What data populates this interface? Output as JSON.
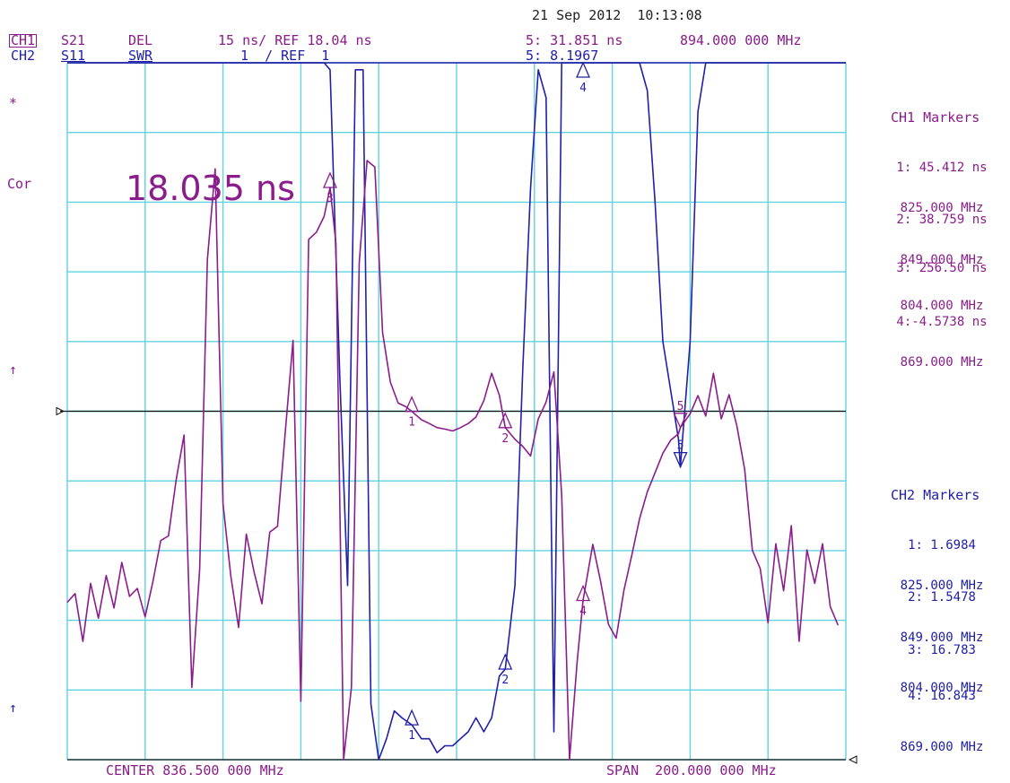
{
  "header": {
    "datetime": "21 Sep 2012  10:13:08",
    "ch1": {
      "label": "CH1",
      "param": "S21",
      "format": "DEL",
      "scale": "15 ns/ REF 18.04 ns",
      "marker_readout": "5: 31.851 ns",
      "marker_freq": "894.000 000 MHz"
    },
    "ch2": {
      "label": "CH2",
      "param": "S11",
      "format": "SWR",
      "scale": "1  / REF  1",
      "marker_readout": "5: 8.1967"
    }
  },
  "left_annotations": {
    "star": "*",
    "cor": "Cor",
    "arrow_top": "↑",
    "arrow_bottom": "↑"
  },
  "big_readout": "18.035 ns",
  "footer": {
    "center": "CENTER 836.500 000 MHz",
    "span": "SPAN  200.000 000 MHz"
  },
  "ch1_markers": {
    "title": "CH1 Markers",
    "items": [
      {
        "value": "1: 45.412 ns",
        "freq": "825.000 MHz"
      },
      {
        "value": "2: 38.759 ns",
        "freq": "849.000 MHz"
      },
      {
        "value": "3: 256.50 ns",
        "freq": "804.000 MHz"
      },
      {
        "value": "4:-4.5738 ns",
        "freq": "869.000 MHz"
      }
    ]
  },
  "ch2_markers": {
    "title": "CH2 Markers",
    "items": [
      {
        "value": "1: 1.6984",
        "freq": "825.000 MHz"
      },
      {
        "value": "2: 1.5478",
        "freq": "849.000 MHz"
      },
      {
        "value": "3: 16.783",
        "freq": "804.000 MHz"
      },
      {
        "value": "4: 16.843",
        "freq": "869.000 MHz"
      }
    ]
  },
  "chart_data": {
    "type": "line",
    "title": "",
    "xlim": [
      736.5,
      936.5
    ],
    "x_divisions": 10,
    "y_divisions": 10,
    "grid": true,
    "colors": {
      "ch1": "#8b1c8b",
      "ch2": "#2020a8",
      "grid": "#5fd3e0"
    },
    "series": [
      {
        "name": "CH1 S21 DEL",
        "color": "#8b1c8b",
        "x_freq_mhz": [
          736.5,
          738.5,
          740.5,
          742.5,
          744.5,
          746.5,
          748.5,
          750.5,
          752.5,
          754.5,
          756.5,
          758.5,
          760.5,
          762.5,
          764.5,
          766.5,
          768.5,
          770.5,
          772.5,
          774.5,
          776.5,
          778.5,
          780.5,
          782.5,
          784.5,
          786.5,
          788.5,
          790.5,
          792.5,
          794.5,
          796.5,
          798.5,
          800.5,
          802.5,
          804.0,
          805.5,
          807.5,
          809.5,
          811.5,
          813.5,
          815.5,
          817.5,
          819.5,
          821.5,
          823.5,
          825.0,
          827.5,
          829.5,
          831.5,
          833.5,
          835.5,
          837.5,
          839.5,
          841.5,
          843.5,
          845.5,
          847.5,
          849.0,
          851.5,
          853.5,
          855.5,
          857.5,
          859.5,
          861.5,
          863.5,
          865.5,
          867.5,
          869.0,
          871.5,
          873.5,
          875.5,
          877.5,
          879.5,
          881.5,
          883.5,
          885.5,
          887.5,
          889.5,
          891.5,
          893.5,
          894.0,
          896.5,
          898.5,
          900.5,
          902.5,
          904.5,
          906.5,
          908.5,
          910.5,
          912.5,
          914.5,
          916.5,
          918.5,
          920.5,
          922.5,
          924.5,
          926.5,
          928.5,
          930.5,
          932.5,
          934.5,
          936.5
        ],
        "y_ns": [
          -23.1,
          -21.2,
          -31.5,
          -19.0,
          -26.5,
          -17.3,
          -24.3,
          -14.5,
          -21.8,
          -20.1,
          -26.2,
          -18.6,
          -9.8,
          -8.8,
          3.4,
          12.9,
          -41.4,
          -15.9,
          50.7,
          70.2,
          -1.8,
          -17.4,
          -28.5,
          -8.4,
          -16.6,
          -23.4,
          -8.0,
          -6.7,
          13.5,
          33.3,
          -44.4,
          55.0,
          56.6,
          60.0,
          66.2,
          54.2,
          -60.0,
          -41.3,
          50.0,
          72.0,
          70.6,
          35.0,
          24.3,
          19.8,
          19.0,
          18.0,
          16.2,
          15.4,
          14.5,
          14.2,
          13.8,
          14.5,
          15.4,
          16.8,
          20.3,
          26.2,
          21.5,
          14.5,
          12.0,
          10.5,
          8.4,
          16.4,
          20.0,
          26.5,
          0.0,
          -60.0,
          -35.7,
          -22.7,
          -10.6,
          -18.6,
          -27.8,
          -30.8,
          -20.5,
          -13.0,
          -5.1,
          0.7,
          4.8,
          9.0,
          11.8,
          13.2,
          14.5,
          17.5,
          21.4,
          17.0,
          26.2,
          16.4,
          21.6,
          14.9,
          5.5,
          -11.9,
          -15.8,
          -27.5,
          -10.5,
          -20.6,
          -6.6,
          -31.5,
          -11.8,
          -19.0,
          -10.5,
          -24.0,
          -28.0
        ]
      },
      {
        "name": "CH2 S11 SWR",
        "color": "#2020a8",
        "x_freq_mhz": [
          736.5,
          740.5,
          744.5,
          748.5,
          752.5,
          756.5,
          758.5,
          760.5,
          762.5,
          764.5,
          766.5,
          768.5,
          770.5,
          772.5,
          774.5,
          776.5,
          778.5,
          780.5,
          782.5,
          784.5,
          786.5,
          788.5,
          790.5,
          792.5,
          794.5,
          796.5,
          798.5,
          800.5,
          802.5,
          804.0,
          806.5,
          808.5,
          810.5,
          812.5,
          814.5,
          816.5,
          818.5,
          820.5,
          822.5,
          825.0,
          827.5,
          829.5,
          831.5,
          833.5,
          835.5,
          837.5,
          839.5,
          841.5,
          843.5,
          845.5,
          847.5,
          849.0,
          851.5,
          853.5,
          855.5,
          857.5,
          859.5,
          861.5,
          863.5,
          865.5,
          867.5,
          869.0,
          871.5,
          873.5,
          875.5,
          877.5,
          879.5,
          881.5,
          883.5,
          885.5,
          887.5,
          889.5,
          891.5,
          893.5,
          894.0,
          896.5,
          898.5,
          900.5,
          902.5,
          904.5,
          906.5,
          908.5,
          910.5,
          912.5,
          914.5,
          916.5,
          918.5,
          920.5,
          922.5,
          924.5,
          926.5,
          928.5,
          930.5,
          932.5,
          934.5,
          936.5
        ],
        "y_swr": [
          7.0,
          7.0,
          7.0,
          7.0,
          7.0,
          7.0,
          7.0,
          7.0,
          7.0,
          7.0,
          7.0,
          7.0,
          7.0,
          7.0,
          7.0,
          7.0,
          7.0,
          7.0,
          7.0,
          7.0,
          7.0,
          7.0,
          7.0,
          7.0,
          7.0,
          7.0,
          7.0,
          7.0,
          7.0,
          7.0,
          7.0,
          7.0,
          7.0,
          7.0,
          7.0,
          7.0,
          7.0,
          7.0,
          7.0,
          7.0,
          7.0,
          7.0,
          7.0,
          7.0,
          7.0,
          7.0,
          7.0,
          7.0,
          7.0,
          7.0,
          7.0,
          7.0,
          7.0,
          7.0,
          7.0,
          7.0,
          7.0,
          7.0,
          7.0,
          7.0,
          7.0,
          7.0,
          7.0,
          7.0,
          7.0,
          7.0,
          7.0,
          7.0,
          7.0,
          7.0,
          7.0,
          7.0,
          7.0,
          7.0,
          7.0,
          7.0,
          7.0,
          7.0,
          7.0,
          7.0,
          7.0,
          7.0,
          7.0,
          7.0,
          7.0,
          7.0,
          7.0,
          7.0,
          7.0,
          7.0,
          7.0,
          7.0,
          7.0,
          7.0,
          7.0,
          7.0
        ],
        "y_div": [
          10,
          10,
          10,
          10,
          10,
          10,
          10,
          10,
          10,
          10,
          10,
          10,
          10,
          10,
          10,
          10,
          10,
          10,
          10,
          10,
          10,
          10,
          10,
          10,
          10,
          10,
          10,
          10,
          10,
          9.9,
          5.5,
          2.5,
          9.9,
          9.9,
          0.8,
          0.0,
          0.3,
          0.7,
          0.6,
          0.5,
          0.3,
          0.3,
          0.1,
          0.2,
          0.2,
          0.3,
          0.4,
          0.6,
          0.4,
          0.6,
          1.2,
          1.3,
          2.5,
          5.6,
          8.2,
          9.9,
          9.5,
          0.4,
          10,
          10,
          10,
          10,
          10,
          10,
          10,
          10,
          10,
          10,
          10,
          9.6,
          8.0,
          6.0,
          5.3,
          4.6,
          4.2,
          6.0,
          9.3,
          10,
          10,
          10,
          10,
          10,
          10,
          10,
          10,
          10,
          10,
          10,
          10,
          10,
          10,
          10,
          10,
          10,
          10,
          10
        ],
        "y_unit_note": ""
      }
    ],
    "markers": [
      {
        "trace": "CH1",
        "id": "1",
        "x": 825.0
      },
      {
        "trace": "CH1",
        "id": "2",
        "x": 849.0
      },
      {
        "trace": "CH1",
        "id": "3",
        "x": 804.0
      },
      {
        "trace": "CH1",
        "id": "4",
        "x": 869.0
      },
      {
        "trace": "CH1",
        "id": "5",
        "x": 894.0
      },
      {
        "trace": "CH2",
        "id": "1",
        "x": 825.0
      },
      {
        "trace": "CH2",
        "id": "2",
        "x": 849.0
      },
      {
        "trace": "CH2",
        "id": "4",
        "x": 869.0
      },
      {
        "trace": "CH2",
        "id": "5",
        "x": 894.0
      }
    ]
  }
}
